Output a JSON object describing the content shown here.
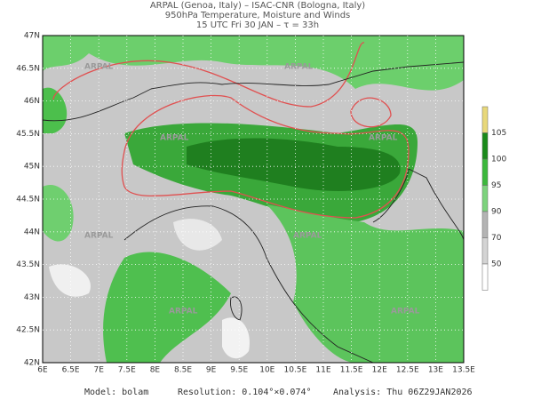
{
  "header": {
    "lines": [
      "ARPAL (Genoa, Italy)  –  ISAC-CNR (Bologna, Italy)",
      "950hPa Temperature, Moisture and Winds",
      "15 UTC Fri 30 JAN  –  τ = 33h"
    ]
  },
  "axes": {
    "lat_labels": [
      "47N",
      "46.5N",
      "46N",
      "45.5N",
      "45N",
      "44.5N",
      "44N",
      "43.5N",
      "43N",
      "42.5N",
      "42N"
    ],
    "lon_labels": [
      "6E",
      "6.5E",
      "7E",
      "7.5E",
      "8E",
      "8.5E",
      "9E",
      "9.5E",
      "10E",
      "10.5E",
      "11E",
      "11.5E",
      "12E",
      "12.5E",
      "13E",
      "13.5E"
    ]
  },
  "watermark": "ARPAL",
  "colorbar": {
    "labels": [
      "105",
      "100",
      "95",
      "90",
      "70",
      "50"
    ]
  },
  "footer": {
    "model": "Model: bolam",
    "resolution": "Resolution: 0.104°×0.074°",
    "analysis": "Analysis: Thu 06Z29JAN2026"
  }
}
